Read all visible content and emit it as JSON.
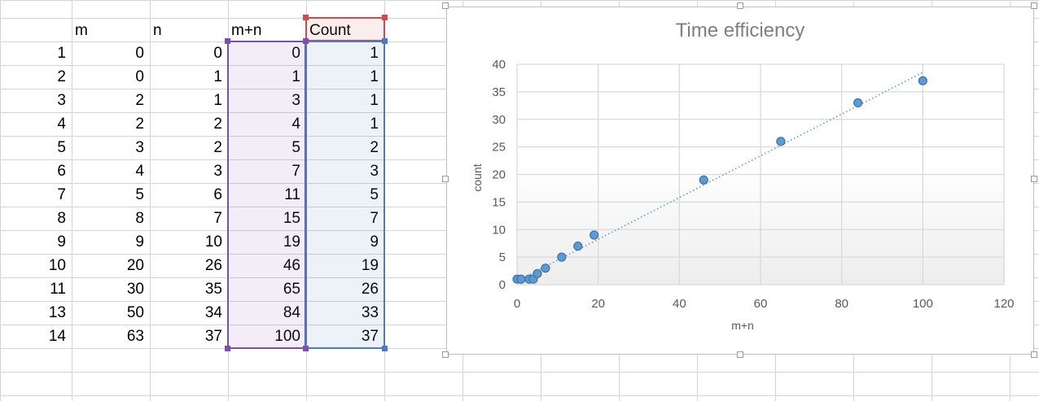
{
  "sheet": {
    "headers": [
      "m",
      "n",
      "m+n",
      "Count"
    ],
    "rows": [
      [
        "1",
        "0",
        "0",
        "0",
        "1"
      ],
      [
        "2",
        "0",
        "1",
        "1",
        "1"
      ],
      [
        "3",
        "2",
        "1",
        "3",
        "1"
      ],
      [
        "4",
        "2",
        "2",
        "4",
        "1"
      ],
      [
        "5",
        "3",
        "2",
        "5",
        "2"
      ],
      [
        "6",
        "4",
        "3",
        "7",
        "3"
      ],
      [
        "7",
        "5",
        "6",
        "11",
        "5"
      ],
      [
        "8",
        "8",
        "7",
        "15",
        "7"
      ],
      [
        "9",
        "9",
        "10",
        "19",
        "9"
      ],
      [
        "10",
        "20",
        "26",
        "46",
        "19"
      ],
      [
        "11",
        "30",
        "35",
        "65",
        "26"
      ],
      [
        "13",
        "50",
        "34",
        "84",
        "33"
      ],
      [
        "14",
        "63",
        "37",
        "100",
        "37"
      ]
    ],
    "selection_colors": {
      "header": "#cf4a4a",
      "mn_column": "#7d4fa8",
      "count_column": "#4a7bc4"
    }
  },
  "chart_data": {
    "type": "scatter",
    "title": "Time efficiency",
    "xlabel": "m+n",
    "ylabel": "count",
    "xlim": [
      0,
      120
    ],
    "ylim": [
      0,
      40
    ],
    "xticks": [
      0,
      20,
      40,
      60,
      80,
      100,
      120
    ],
    "yticks": [
      0,
      5,
      10,
      15,
      20,
      25,
      30,
      35,
      40
    ],
    "grid": true,
    "trendline": "dotted linear",
    "marker_color": "#5b9bd5",
    "series": [
      {
        "x": [
          0,
          1,
          3,
          4,
          5,
          7,
          11,
          15,
          19,
          46,
          65,
          84,
          100
        ],
        "y": [
          1,
          1,
          1,
          1,
          2,
          3,
          5,
          7,
          9,
          19,
          26,
          33,
          37
        ]
      }
    ]
  }
}
